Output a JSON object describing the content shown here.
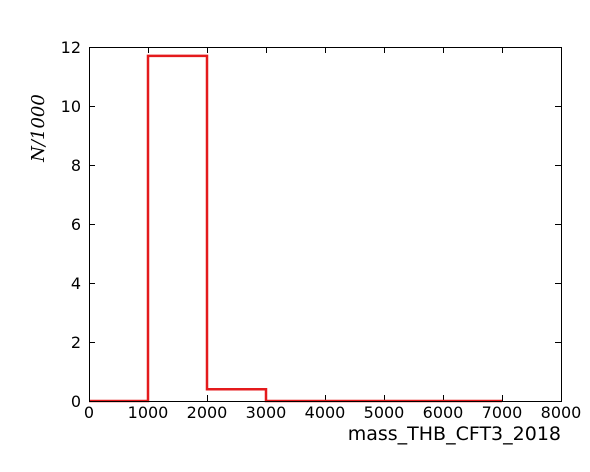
{
  "chart_data": {
    "type": "histogram",
    "title": "",
    "xlabel": "mass_THB_CFT3_2018",
    "ylabel": "N/1000",
    "xlim": [
      0,
      8000
    ],
    "ylim": [
      0,
      12
    ],
    "xticks": [
      0,
      1000,
      2000,
      3000,
      4000,
      5000,
      6000,
      7000,
      8000
    ],
    "yticks": [
      0,
      2,
      4,
      6,
      8,
      10,
      12
    ],
    "grid": false,
    "legend": "none",
    "line_color": "#e41a1c",
    "bin_edges": [
      0,
      1000,
      2000,
      3000,
      4000,
      5000,
      6000,
      7000
    ],
    "values": [
      0,
      11.7,
      0.4,
      0,
      0,
      0,
      0
    ]
  }
}
